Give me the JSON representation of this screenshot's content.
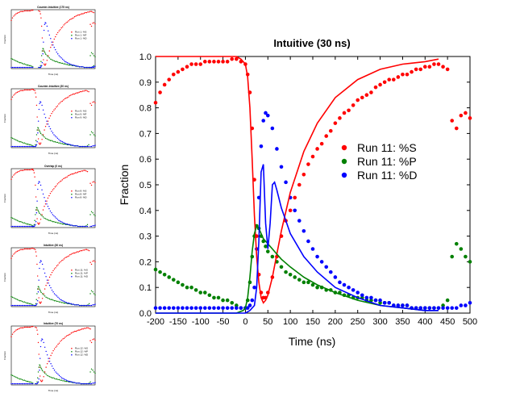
{
  "colors": {
    "S": "#ff0000",
    "P": "#008000",
    "D": "#0000ff",
    "axis": "#000000"
  },
  "thumbnails": [
    {
      "title": "Counter-Intuitive (175 ns)",
      "legend": [
        "Run 1: %S",
        "Run 1: %P",
        "Run 1: %D"
      ],
      "xlabel": "Time (ns)",
      "ylabel": "Fraction"
    },
    {
      "title": "Counter-Intuitive (30 ns)",
      "legend": [
        "Run 9: %S",
        "Run 9: %P",
        "Run 9: %D"
      ],
      "xlabel": "Time (ns)",
      "ylabel": "Fraction"
    },
    {
      "title": "Overlap (0 ns)",
      "legend": [
        "Run 8: %S",
        "Run 8: %P",
        "Run 8: %D"
      ],
      "xlabel": "Time (ns)",
      "ylabel": "Fraction"
    },
    {
      "title": "Intuitive (30 ns)",
      "legend": [
        "Run 11: %S",
        "Run 11: %P",
        "Run 11: %D"
      ],
      "xlabel": "Time (ns)",
      "ylabel": "Fraction"
    },
    {
      "title": "Intuitive (70 ns)",
      "legend": [
        "Run 12: %S",
        "Run 12: %P",
        "Run 12: %D"
      ],
      "xlabel": "Time (ns)",
      "ylabel": "Fraction"
    }
  ],
  "chart_data": {
    "type": "scatter",
    "title": "Intuitive (30 ns)",
    "xlabel": "Time (ns)",
    "ylabel": "Fraction",
    "xlim": [
      -200,
      500
    ],
    "ylim": [
      0.0,
      1.0
    ],
    "xticks": [
      -200,
      -150,
      -100,
      -50,
      0,
      50,
      100,
      150,
      200,
      250,
      300,
      350,
      400,
      450,
      500
    ],
    "yticks": [
      0.0,
      0.1,
      0.2,
      0.3,
      0.4,
      0.5,
      0.6,
      0.7,
      0.8,
      0.9,
      1.0
    ],
    "grid": false,
    "legend_position": "center-right",
    "series": [
      {
        "name": "Run 11: %S",
        "color": "#ff0000",
        "x": [
          -200,
          -190,
          -180,
          -170,
          -160,
          -150,
          -140,
          -130,
          -120,
          -110,
          -100,
          -90,
          -80,
          -70,
          -60,
          -50,
          -40,
          -30,
          -20,
          -10,
          0,
          5,
          10,
          15,
          20,
          25,
          30,
          35,
          40,
          45,
          50,
          60,
          70,
          80,
          90,
          100,
          110,
          120,
          130,
          140,
          150,
          160,
          170,
          180,
          190,
          200,
          210,
          220,
          230,
          240,
          250,
          260,
          270,
          280,
          290,
          300,
          310,
          320,
          330,
          340,
          350,
          360,
          370,
          380,
          390,
          400,
          410,
          420,
          430,
          440,
          450,
          460,
          470,
          480,
          490,
          500
        ],
        "y": [
          0.82,
          0.86,
          0.89,
          0.91,
          0.93,
          0.94,
          0.95,
          0.96,
          0.97,
          0.97,
          0.97,
          0.98,
          0.98,
          0.98,
          0.98,
          0.98,
          0.98,
          0.99,
          0.99,
          0.98,
          0.97,
          0.93,
          0.86,
          0.72,
          0.52,
          0.3,
          0.15,
          0.08,
          0.06,
          0.06,
          0.08,
          0.14,
          0.22,
          0.3,
          0.36,
          0.4,
          0.45,
          0.5,
          0.54,
          0.58,
          0.61,
          0.64,
          0.66,
          0.69,
          0.71,
          0.74,
          0.76,
          0.78,
          0.79,
          0.81,
          0.83,
          0.84,
          0.85,
          0.86,
          0.88,
          0.89,
          0.9,
          0.91,
          0.91,
          0.92,
          0.93,
          0.93,
          0.94,
          0.95,
          0.95,
          0.96,
          0.96,
          0.97,
          0.97,
          0.96,
          0.95,
          0.75,
          0.72,
          0.77,
          0.78,
          0.76
        ]
      },
      {
        "name": "Run 11: %P",
        "color": "#008000",
        "x": [
          -200,
          -190,
          -180,
          -170,
          -160,
          -150,
          -140,
          -130,
          -120,
          -110,
          -100,
          -90,
          -80,
          -70,
          -60,
          -50,
          -40,
          -30,
          -20,
          -10,
          0,
          5,
          10,
          15,
          20,
          25,
          30,
          35,
          40,
          45,
          50,
          60,
          70,
          80,
          90,
          100,
          110,
          120,
          130,
          140,
          150,
          160,
          170,
          180,
          190,
          200,
          210,
          220,
          230,
          240,
          250,
          260,
          270,
          280,
          290,
          300,
          310,
          320,
          330,
          340,
          350,
          360,
          370,
          380,
          390,
          400,
          410,
          420,
          430,
          440,
          450,
          460,
          470,
          480,
          490,
          500
        ],
        "y": [
          0.17,
          0.16,
          0.15,
          0.14,
          0.13,
          0.12,
          0.11,
          0.1,
          0.1,
          0.09,
          0.08,
          0.08,
          0.07,
          0.06,
          0.06,
          0.05,
          0.05,
          0.04,
          0.03,
          0.02,
          0.02,
          0.05,
          0.12,
          0.22,
          0.3,
          0.34,
          0.33,
          0.3,
          0.28,
          0.26,
          0.24,
          0.22,
          0.2,
          0.18,
          0.16,
          0.15,
          0.14,
          0.13,
          0.12,
          0.12,
          0.11,
          0.1,
          0.1,
          0.09,
          0.09,
          0.08,
          0.08,
          0.07,
          0.07,
          0.06,
          0.06,
          0.06,
          0.05,
          0.05,
          0.05,
          0.04,
          0.04,
          0.04,
          0.03,
          0.03,
          0.03,
          0.03,
          0.02,
          0.02,
          0.02,
          0.02,
          0.02,
          0.02,
          0.02,
          0.03,
          0.05,
          0.22,
          0.27,
          0.25,
          0.22,
          0.2
        ]
      },
      {
        "name": "Run 11: %D",
        "color": "#0000ff",
        "x": [
          -200,
          -190,
          -180,
          -170,
          -160,
          -150,
          -140,
          -130,
          -120,
          -110,
          -100,
          -90,
          -80,
          -70,
          -60,
          -50,
          -40,
          -30,
          -20,
          -10,
          0,
          5,
          10,
          15,
          20,
          25,
          30,
          35,
          40,
          45,
          50,
          60,
          70,
          80,
          90,
          100,
          110,
          120,
          130,
          140,
          150,
          160,
          170,
          180,
          190,
          200,
          210,
          220,
          230,
          240,
          250,
          260,
          270,
          280,
          290,
          300,
          310,
          320,
          330,
          340,
          350,
          360,
          370,
          380,
          390,
          400,
          410,
          420,
          430,
          440,
          450,
          460,
          470,
          480,
          490,
          500
        ],
        "y": [
          0.02,
          0.02,
          0.02,
          0.02,
          0.02,
          0.02,
          0.02,
          0.02,
          0.02,
          0.02,
          0.02,
          0.02,
          0.02,
          0.02,
          0.02,
          0.02,
          0.02,
          0.02,
          0.02,
          0.02,
          0.02,
          0.02,
          0.03,
          0.05,
          0.1,
          0.25,
          0.45,
          0.65,
          0.75,
          0.78,
          0.77,
          0.72,
          0.64,
          0.57,
          0.51,
          0.45,
          0.4,
          0.36,
          0.32,
          0.28,
          0.25,
          0.22,
          0.2,
          0.18,
          0.16,
          0.14,
          0.12,
          0.11,
          0.1,
          0.09,
          0.08,
          0.07,
          0.06,
          0.06,
          0.05,
          0.05,
          0.04,
          0.04,
          0.03,
          0.03,
          0.03,
          0.03,
          0.02,
          0.02,
          0.02,
          0.02,
          0.02,
          0.02,
          0.02,
          0.02,
          0.02,
          0.02,
          0.02,
          0.03,
          0.03,
          0.04
        ]
      }
    ],
    "fit_lines": [
      {
        "series": "Run 11: %S",
        "color": "#ff0000",
        "x": [
          -200,
          -150,
          -100,
          -50,
          -20,
          -10,
          0,
          5,
          10,
          15,
          20,
          25,
          30,
          35,
          40,
          45,
          50,
          60,
          70,
          80,
          100,
          130,
          160,
          200,
          250,
          300,
          350,
          400,
          430
        ],
        "y": [
          1.0,
          1.0,
          1.0,
          1.0,
          1.0,
          0.99,
          0.97,
          0.92,
          0.8,
          0.6,
          0.38,
          0.22,
          0.12,
          0.06,
          0.04,
          0.05,
          0.07,
          0.14,
          0.23,
          0.32,
          0.47,
          0.63,
          0.74,
          0.84,
          0.91,
          0.95,
          0.97,
          0.98,
          0.99
        ]
      },
      {
        "series": "Run 11: %P",
        "color": "#008000",
        "x": [
          -200,
          -100,
          -50,
          -20,
          -5,
          0,
          5,
          10,
          15,
          20,
          25,
          30,
          35,
          40,
          50,
          60,
          70,
          80,
          100,
          130,
          160,
          200,
          250,
          300,
          350,
          400,
          430
        ],
        "y": [
          0.0,
          0.0,
          0.0,
          0.0,
          0.01,
          0.02,
          0.06,
          0.14,
          0.24,
          0.31,
          0.34,
          0.33,
          0.31,
          0.29,
          0.27,
          0.25,
          0.23,
          0.21,
          0.18,
          0.14,
          0.11,
          0.08,
          0.05,
          0.03,
          0.02,
          0.01,
          0.01
        ]
      },
      {
        "series": "Run 11: %D",
        "color": "#0000ff",
        "x": [
          -200,
          -100,
          -50,
          -20,
          -5,
          0,
          10,
          20,
          25,
          30,
          35,
          40,
          45,
          50,
          55,
          60,
          65,
          70,
          80,
          90,
          100,
          130,
          160,
          200,
          250,
          300,
          350,
          400,
          430
        ],
        "y": [
          0.0,
          0.0,
          0.0,
          0.0,
          0.0,
          0.0,
          0.01,
          0.03,
          0.1,
          0.28,
          0.55,
          0.58,
          0.35,
          0.25,
          0.35,
          0.5,
          0.51,
          0.48,
          0.41,
          0.36,
          0.31,
          0.22,
          0.16,
          0.1,
          0.06,
          0.03,
          0.02,
          0.01,
          0.01
        ]
      }
    ]
  }
}
